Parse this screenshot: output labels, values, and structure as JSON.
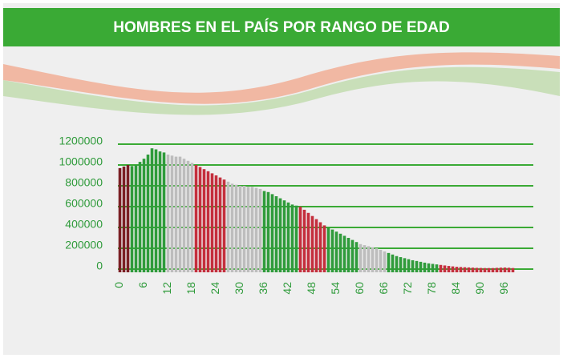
{
  "chart_data": {
    "type": "bar",
    "title": "HOMBRES EN EL PAÍS POR RANGO DE EDAD",
    "categories": [
      "0",
      null,
      null,
      null,
      null,
      null,
      "6",
      null,
      null,
      null,
      null,
      null,
      "12",
      null,
      null,
      null,
      null,
      null,
      "18",
      null,
      null,
      null,
      null,
      null,
      "24",
      null,
      null,
      null,
      null,
      null,
      "30",
      null,
      null,
      null,
      null,
      null,
      "36",
      null,
      null,
      null,
      null,
      null,
      "42",
      null,
      null,
      null,
      null,
      null,
      "48",
      null,
      null,
      null,
      null,
      null,
      "54",
      null,
      null,
      null,
      null,
      null,
      "60",
      null,
      null,
      null,
      null,
      null,
      "66",
      null,
      null,
      null,
      null,
      null,
      "72",
      null,
      null,
      null,
      null,
      null,
      "78",
      null,
      null,
      null,
      null,
      null,
      "84",
      null,
      null,
      null,
      null,
      null,
      "90",
      null,
      null,
      null,
      null,
      null,
      "96",
      null,
      null
    ],
    "values": [
      970000,
      985000,
      1000000,
      990000,
      1000000,
      1030000,
      1060000,
      1100000,
      1160000,
      1150000,
      1130000,
      1120000,
      1100000,
      1090000,
      1080000,
      1080000,
      1060000,
      1040000,
      1020000,
      1000000,
      980000,
      960000,
      940000,
      920000,
      900000,
      880000,
      860000,
      840000,
      820000,
      810000,
      800000,
      800000,
      790000,
      790000,
      780000,
      770000,
      750000,
      740000,
      720000,
      700000,
      680000,
      660000,
      640000,
      620000,
      610000,
      600000,
      570000,
      540000,
      510000,
      480000,
      450000,
      420000,
      400000,
      380000,
      360000,
      340000,
      320000,
      300000,
      280000,
      260000,
      240000,
      230000,
      220000,
      210000,
      200000,
      185000,
      170000,
      155000,
      140000,
      125000,
      115000,
      105000,
      95000,
      85000,
      78000,
      70000,
      62000,
      55000,
      50000,
      45000,
      40000,
      35000,
      30000,
      26000,
      22000,
      20000,
      18000,
      16000,
      14000,
      12000,
      11000,
      10000,
      10000,
      10000,
      12000,
      14000,
      15000,
      13000,
      10000
    ],
    "colors": [
      "#7b1f24",
      "#7b1f24",
      "#7b1f24",
      "#2f9b3b",
      "#2f9b3b",
      "#2f9b3b",
      "#2f9b3b",
      "#2f9b3b",
      "#2f9b3b",
      "#2f9b3b",
      "#2f9b3b",
      "#2f9b3b",
      "#bdbdbd",
      "#bdbdbd",
      "#bdbdbd",
      "#bdbdbd",
      "#bdbdbd",
      "#bdbdbd",
      "#bdbdbd",
      "#c42f3d",
      "#c42f3d",
      "#c42f3d",
      "#c42f3d",
      "#c42f3d",
      "#c42f3d",
      "#c42f3d",
      "#c42f3d",
      "#bdbdbd",
      "#bdbdbd",
      "#bdbdbd",
      "#bdbdbd",
      "#bdbdbd",
      "#bdbdbd",
      "#bdbdbd",
      "#bdbdbd",
      "#bdbdbd",
      "#2f9b3b",
      "#2f9b3b",
      "#2f9b3b",
      "#2f9b3b",
      "#2f9b3b",
      "#2f9b3b",
      "#2f9b3b",
      "#2f9b3b",
      "#2f9b3b",
      "#c42f3d",
      "#c42f3d",
      "#c42f3d",
      "#c42f3d",
      "#c42f3d",
      "#c42f3d",
      "#c42f3d",
      "#2f9b3b",
      "#2f9b3b",
      "#2f9b3b",
      "#2f9b3b",
      "#2f9b3b",
      "#2f9b3b",
      "#2f9b3b",
      "#2f9b3b",
      "#bdbdbd",
      "#bdbdbd",
      "#bdbdbd",
      "#bdbdbd",
      "#bdbdbd",
      "#bdbdbd",
      "#bdbdbd",
      "#2f9b3b",
      "#2f9b3b",
      "#2f9b3b",
      "#2f9b3b",
      "#2f9b3b",
      "#2f9b3b",
      "#2f9b3b",
      "#2f9b3b",
      "#2f9b3b",
      "#2f9b3b",
      "#2f9b3b",
      "#2f9b3b",
      "#2f9b3b",
      "#c42f3d",
      "#c42f3d",
      "#c42f3d",
      "#c42f3d",
      "#c42f3d",
      "#c42f3d",
      "#c42f3d",
      "#c42f3d",
      "#c42f3d",
      "#c42f3d",
      "#c42f3d",
      "#c42f3d",
      "#c42f3d",
      "#c42f3d",
      "#c42f3d",
      "#c42f3d",
      "#c42f3d",
      "#c42f3d",
      "#c42f3d"
    ],
    "ylim": [
      0,
      1200000
    ],
    "yticks": [
      0,
      200000,
      400000,
      600000,
      800000,
      1000000,
      1200000
    ],
    "grid": true
  }
}
